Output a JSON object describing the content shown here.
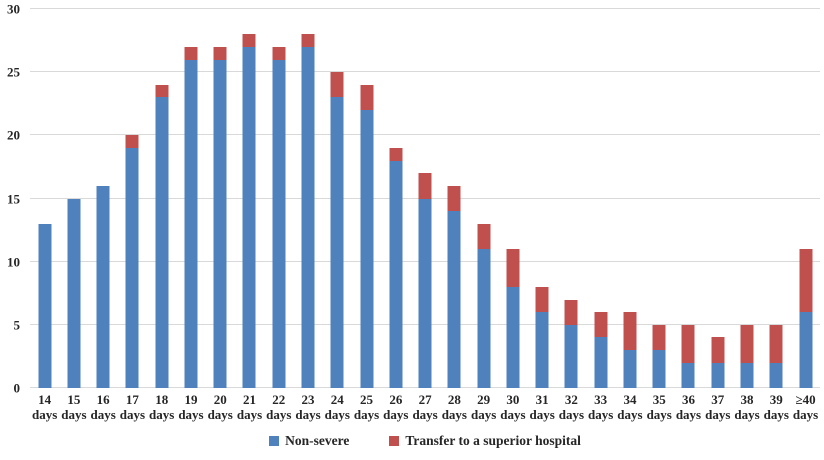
{
  "chart_data": {
    "type": "bar",
    "stacked": true,
    "title": "",
    "xlabel": "",
    "ylabel": "",
    "categories": [
      "14",
      "15",
      "16",
      "17",
      "18",
      "19",
      "20",
      "21",
      "22",
      "23",
      "24",
      "25",
      "26",
      "27",
      "28",
      "29",
      "30",
      "31",
      "32",
      "33",
      "34",
      "35",
      "36",
      "37",
      "38",
      "39",
      "≥40"
    ],
    "category_unit": "days",
    "series": [
      {
        "name": "Non-severe",
        "color": "#4f81bd",
        "values": [
          13,
          15,
          16,
          19,
          23,
          26,
          26,
          27,
          26,
          27,
          23,
          22,
          18,
          15,
          14,
          11,
          8,
          6,
          5,
          4,
          3,
          3,
          2,
          2,
          2,
          2,
          6
        ]
      },
      {
        "name": "Transfer to a superior hospital",
        "color": "#c0504d",
        "values": [
          0,
          0,
          0,
          1,
          1,
          1,
          1,
          1,
          1,
          1,
          2,
          2,
          1,
          2,
          2,
          2,
          3,
          2,
          2,
          2,
          3,
          2,
          3,
          2,
          3,
          3,
          5
        ]
      }
    ],
    "totals": [
      13,
      15,
      16,
      20,
      24,
      27,
      27,
      28,
      27,
      28,
      25,
      24,
      19,
      17,
      16,
      13,
      11,
      8,
      7,
      6,
      6,
      5,
      5,
      4,
      5,
      5,
      11
    ],
    "ylim": [
      0,
      30
    ],
    "yticks": [
      0,
      5,
      10,
      15,
      20,
      25,
      30
    ],
    "grid": true,
    "gridline_color": "#d9d9d9",
    "text_color": "#262626",
    "legend_position": "bottom"
  }
}
